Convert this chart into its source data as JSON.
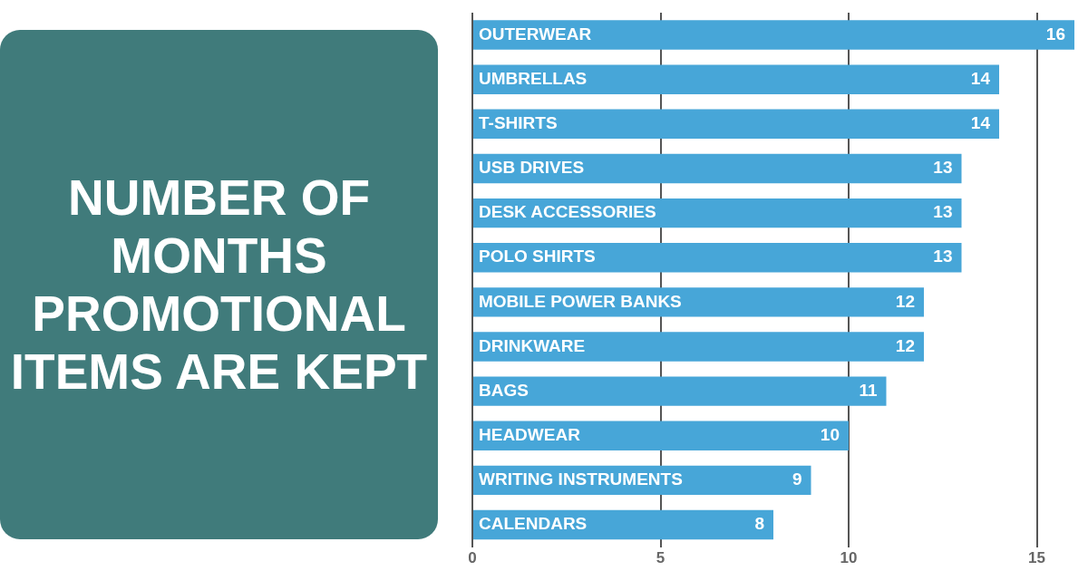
{
  "chart_data": {
    "type": "bar",
    "orientation": "horizontal",
    "title": "NUMBER OF MONTHS PROMOTIONAL ITEMS ARE KEPT",
    "categories": [
      "OUTERWEAR",
      "UMBRELLAS",
      "T-SHIRTS",
      "USB DRIVES",
      "DESK ACCESSORIES",
      "POLO SHIRTS",
      "MOBILE POWER BANKS",
      "DRINKWARE",
      "BAGS",
      "HEADWEAR",
      "WRITING INSTRUMENTS",
      "CALENDARS"
    ],
    "values": [
      16,
      14,
      14,
      13,
      13,
      13,
      12,
      12,
      11,
      10,
      9,
      8
    ],
    "color": "#47a6d8",
    "xlim": [
      0,
      16
    ],
    "xticks": [
      0,
      5,
      10,
      15
    ],
    "grid": "x",
    "data_labels": true
  }
}
